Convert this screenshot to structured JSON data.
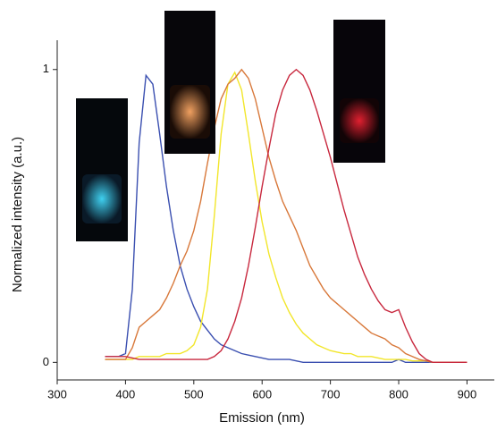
{
  "chart_data": {
    "type": "line",
    "xlabel": "Emission (nm)",
    "ylabel": "Normalized intensity (a.u.)",
    "x": [
      370,
      380,
      390,
      400,
      410,
      420,
      430,
      440,
      450,
      460,
      470,
      480,
      490,
      500,
      510,
      520,
      530,
      540,
      550,
      560,
      570,
      580,
      590,
      600,
      610,
      620,
      630,
      640,
      650,
      660,
      670,
      680,
      690,
      700,
      710,
      720,
      730,
      740,
      750,
      760,
      770,
      780,
      790,
      800,
      810,
      820,
      830,
      840,
      850,
      860,
      870,
      880,
      890,
      900
    ],
    "series": [
      {
        "color": "#3a4fb0",
        "values": [
          0.02,
          0.02,
          0.02,
          0.03,
          0.25,
          0.75,
          0.98,
          0.95,
          0.78,
          0.6,
          0.45,
          0.33,
          0.25,
          0.19,
          0.14,
          0.11,
          0.08,
          0.06,
          0.05,
          0.04,
          0.03,
          0.025,
          0.02,
          0.015,
          0.01,
          0.01,
          0.01,
          0.01,
          0.005,
          0,
          0,
          0,
          0,
          0,
          0,
          0,
          0,
          0,
          0,
          0,
          0,
          0,
          0,
          0.01,
          0,
          0,
          0,
          0,
          0,
          0,
          0,
          0,
          0,
          0
        ]
      },
      {
        "color": "#f2e62a",
        "values": [
          0.01,
          0.01,
          0.01,
          0.01,
          0.01,
          0.02,
          0.02,
          0.02,
          0.02,
          0.03,
          0.03,
          0.03,
          0.04,
          0.06,
          0.12,
          0.25,
          0.5,
          0.78,
          0.95,
          0.99,
          0.93,
          0.78,
          0.62,
          0.48,
          0.37,
          0.29,
          0.22,
          0.17,
          0.13,
          0.1,
          0.08,
          0.06,
          0.05,
          0.04,
          0.035,
          0.03,
          0.03,
          0.02,
          0.02,
          0.02,
          0.015,
          0.01,
          0.01,
          0.01,
          0.01,
          0.005,
          0.005,
          0.005,
          0,
          0,
          0,
          0,
          0,
          0
        ]
      },
      {
        "color": "#d8783a",
        "values": [
          0.01,
          0.01,
          0.01,
          0.01,
          0.05,
          0.12,
          0.14,
          0.16,
          0.18,
          0.22,
          0.27,
          0.33,
          0.38,
          0.45,
          0.55,
          0.68,
          0.8,
          0.9,
          0.95,
          0.97,
          1,
          0.97,
          0.9,
          0.8,
          0.7,
          0.62,
          0.55,
          0.5,
          0.45,
          0.39,
          0.33,
          0.29,
          0.25,
          0.22,
          0.2,
          0.18,
          0.16,
          0.14,
          0.12,
          0.1,
          0.09,
          0.08,
          0.06,
          0.05,
          0.03,
          0.02,
          0.01,
          0.005,
          0,
          0,
          0,
          0,
          0,
          0
        ]
      },
      {
        "color": "#c8283e",
        "values": [
          0.02,
          0.02,
          0.02,
          0.02,
          0.015,
          0.01,
          0.01,
          0.01,
          0.01,
          0.01,
          0.01,
          0.01,
          0.01,
          0.01,
          0.01,
          0.01,
          0.02,
          0.04,
          0.08,
          0.14,
          0.22,
          0.33,
          0.46,
          0.6,
          0.73,
          0.85,
          0.93,
          0.98,
          1,
          0.98,
          0.93,
          0.86,
          0.78,
          0.7,
          0.61,
          0.52,
          0.44,
          0.36,
          0.3,
          0.25,
          0.21,
          0.18,
          0.17,
          0.18,
          0.12,
          0.07,
          0.03,
          0.01,
          0,
          0,
          0,
          0,
          0,
          0
        ]
      }
    ],
    "xlim": [
      300,
      940
    ],
    "ylim": [
      -0.06,
      1.1
    ],
    "xticks": [
      300,
      400,
      500,
      600,
      700,
      800,
      900
    ],
    "yticks": [
      0,
      1
    ]
  }
}
